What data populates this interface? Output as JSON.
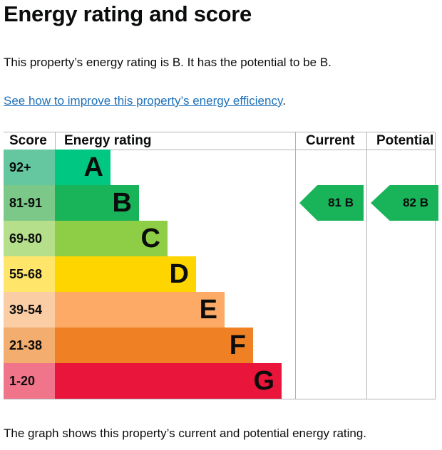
{
  "title": "Energy rating and score",
  "summary": "This property’s energy rating is B. It has the potential to be B.",
  "improve_link": "See how to improve this property’s energy efficiency",
  "improve_link_suffix": ".",
  "table": {
    "headers": {
      "score": "Score",
      "rating": "Energy rating",
      "current": "Current",
      "potential": "Potential"
    },
    "bands": [
      {
        "score": "92+",
        "letter": "A",
        "color": "#00c781",
        "score_color": "#64c7a0"
      },
      {
        "score": "81-91",
        "letter": "B",
        "color": "#19b459",
        "score_color": "#7bc888"
      },
      {
        "score": "69-80",
        "letter": "C",
        "color": "#8dce46",
        "score_color": "#b6df8b"
      },
      {
        "score": "55-68",
        "letter": "D",
        "color": "#ffd500",
        "score_color": "#ffe66a"
      },
      {
        "score": "39-54",
        "letter": "E",
        "color": "#fcaa65",
        "score_color": "#fbcda4"
      },
      {
        "score": "21-38",
        "letter": "F",
        "color": "#ef8023",
        "score_color": "#f3ad6e"
      },
      {
        "score": "1-20",
        "letter": "G",
        "color": "#e9153b",
        "score_color": "#f0748a"
      }
    ],
    "current": {
      "label": "81 B",
      "band": "B",
      "color": "#19b459"
    },
    "potential": {
      "label": "82  B",
      "band": "B",
      "color": "#19b459"
    }
  },
  "footer": "The graph shows this property’s current and potential energy rating."
}
